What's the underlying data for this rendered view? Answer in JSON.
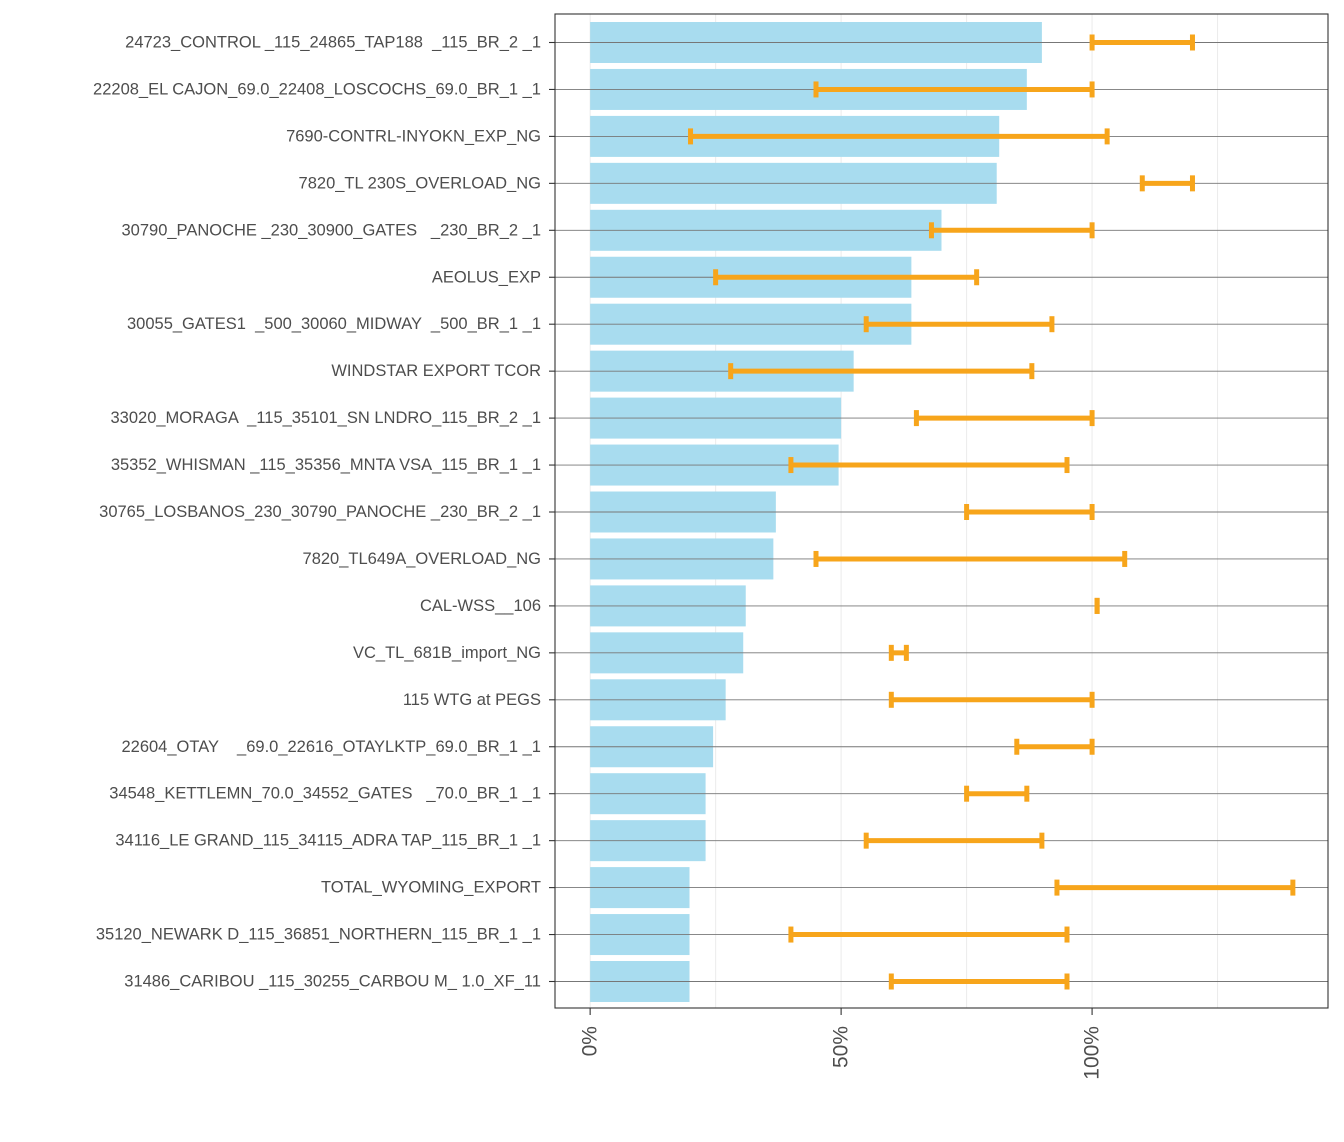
{
  "chart_data": {
    "type": "bar",
    "orientation": "horizontal",
    "title": "",
    "xlabel": "",
    "ylabel": "",
    "xlim": [
      -0.07,
      1.47
    ],
    "x_ticks": [
      0,
      0.5,
      1.0
    ],
    "x_tick_labels": [
      "0%",
      "50%",
      "100%"
    ],
    "grid": true,
    "colors": {
      "bar": "#a8dcef",
      "errorbar": "#f7a51b",
      "axis": "#333333",
      "grid": "#ebebeb",
      "rowline": "#777777"
    },
    "series": [
      {
        "name": "value",
        "type": "bar"
      },
      {
        "name": "range",
        "type": "errorbar"
      }
    ],
    "categories": [
      "24723_CONTROL _115_24865_TAP188  _115_BR_2 _1",
      "22208_EL CAJON_69.0_22408_LOSCOCHS_69.0_BR_1 _1",
      "7690-CONTRL-INYOKN_EXP_NG",
      "7820_TL 230S_OVERLOAD_NG",
      "30790_PANOCHE _230_30900_GATES   _230_BR_2 _1",
      "AEOLUS_EXP",
      "30055_GATES1  _500_30060_MIDWAY  _500_BR_1 _1",
      "WINDSTAR EXPORT TCOR",
      "33020_MORAGA  _115_35101_SN LNDRO_115_BR_2 _1",
      "35352_WHISMAN _115_35356_MNTA VSA_115_BR_1 _1",
      "30765_LOSBANOS_230_30790_PANOCHE _230_BR_2 _1",
      "7820_TL649A_OVERLOAD_NG",
      "CAL-WSS__106",
      "VC_TL_681B_import_NG",
      "115 WTG at PEGS",
      "22604_OTAY    _69.0_22616_OTAYLKTP_69.0_BR_1 _1",
      "34548_KETTLEMN_70.0_34552_GATES   _70.0_BR_1 _1",
      "34116_LE GRAND_115_34115_ADRA TAP_115_BR_1 _1",
      "TOTAL_WYOMING_EXPORT",
      "35120_NEWARK D_115_36851_NORTHERN_115_BR_1 _1",
      "31486_CARIBOU _115_30255_CARBOU M_ 1.0_XF_11"
    ],
    "values": [
      0.9,
      0.87,
      0.815,
      0.81,
      0.7,
      0.64,
      0.64,
      0.525,
      0.5,
      0.495,
      0.37,
      0.365,
      0.31,
      0.305,
      0.27,
      0.245,
      0.23,
      0.23,
      0.198,
      0.198,
      0.198
    ],
    "ranges": [
      [
        1.0,
        1.2
      ],
      [
        0.45,
        1.0
      ],
      [
        0.2,
        1.03
      ],
      [
        1.1,
        1.2
      ],
      [
        0.68,
        1.0
      ],
      [
        0.25,
        0.77
      ],
      [
        0.55,
        0.92
      ],
      [
        0.28,
        0.88
      ],
      [
        0.65,
        1.0
      ],
      [
        0.4,
        0.95
      ],
      [
        0.75,
        1.0
      ],
      [
        0.45,
        1.065
      ],
      [
        1.01,
        1.01
      ],
      [
        0.6,
        0.63
      ],
      [
        0.6,
        1.0
      ],
      [
        0.85,
        1.0
      ],
      [
        0.75,
        0.87
      ],
      [
        0.55,
        0.9
      ],
      [
        0.93,
        1.4
      ],
      [
        0.4,
        0.95
      ],
      [
        0.6,
        0.95
      ]
    ]
  }
}
